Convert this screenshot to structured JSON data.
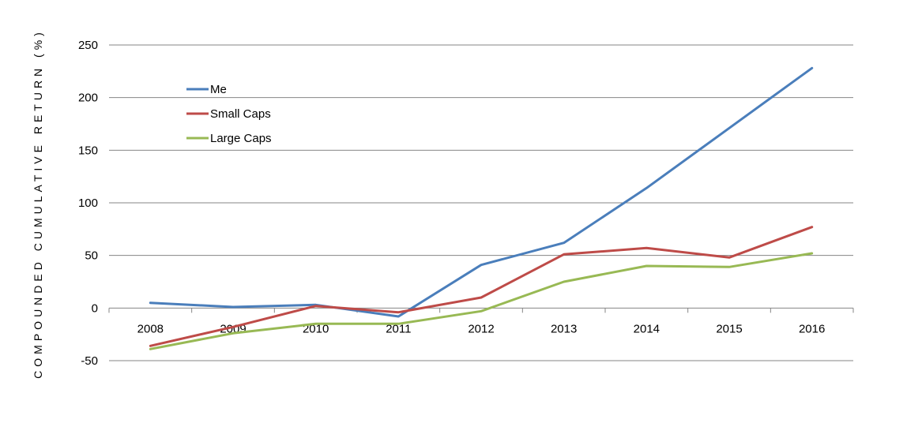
{
  "chart_data": {
    "type": "line",
    "title": "",
    "xlabel": "",
    "ylabel": "COMPOUNDED CUMULATIVE RETURN (%)",
    "categories": [
      "2008",
      "2009",
      "2010",
      "2011",
      "2012",
      "2013",
      "2014",
      "2015",
      "2016"
    ],
    "ylim": [
      -50,
      250
    ],
    "yticks": [
      -50,
      0,
      50,
      100,
      150,
      200,
      250
    ],
    "ytick_labels": [
      "-50",
      "0",
      "50",
      "100",
      "150",
      "200",
      "250"
    ],
    "grid": true,
    "legend_position": "top-left",
    "series": [
      {
        "name": "Me",
        "color": "#4a7ebb",
        "values": [
          5,
          1,
          3,
          -8,
          41,
          62,
          114,
          171,
          228
        ]
      },
      {
        "name": "Small Caps",
        "color": "#be4b48",
        "values": [
          -36,
          -18,
          2,
          -4,
          10,
          51,
          57,
          48,
          77
        ]
      },
      {
        "name": "Large Caps",
        "color": "#98b954",
        "values": [
          -39,
          -24,
          -15,
          -15,
          -3,
          25,
          40,
          39,
          52
        ]
      }
    ]
  }
}
